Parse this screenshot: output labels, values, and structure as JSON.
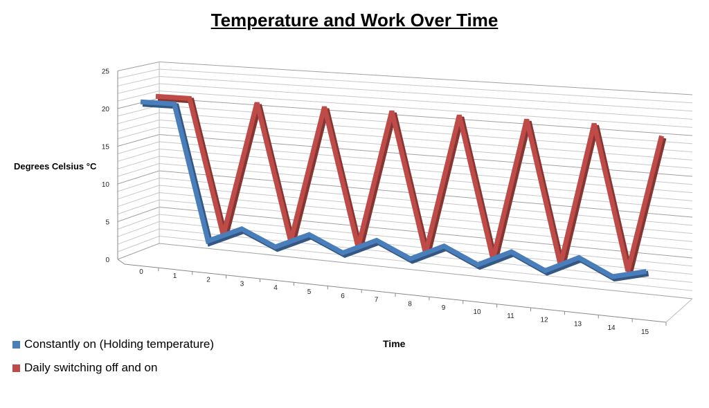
{
  "chart_data": {
    "type": "line",
    "subtype": "3d-line",
    "title": "Temperature and Work Over Time",
    "xlabel": "Time",
    "ylabel": "Degrees Celsius °C",
    "x": [
      0,
      1,
      2,
      3,
      4,
      5,
      6,
      7,
      8,
      9,
      10,
      11,
      12,
      13,
      14,
      15
    ],
    "ylim": [
      0,
      25
    ],
    "yticks": [
      0,
      5,
      10,
      15,
      20,
      25
    ],
    "grid": true,
    "legend_position": "bottom-left",
    "series": [
      {
        "name": "Constantly on (Holding temperature)",
        "color": "#4a7ebb",
        "values": [
          21,
          21,
          3,
          5,
          3,
          5,
          3,
          5,
          3,
          5,
          3,
          5,
          3,
          5,
          3,
          4
        ]
      },
      {
        "name": "Daily switching off and on",
        "color": "#be4b48",
        "values": [
          21,
          21,
          3,
          21,
          3,
          21,
          3,
          21,
          3,
          21,
          3,
          21,
          3,
          21,
          3,
          20
        ]
      }
    ]
  }
}
